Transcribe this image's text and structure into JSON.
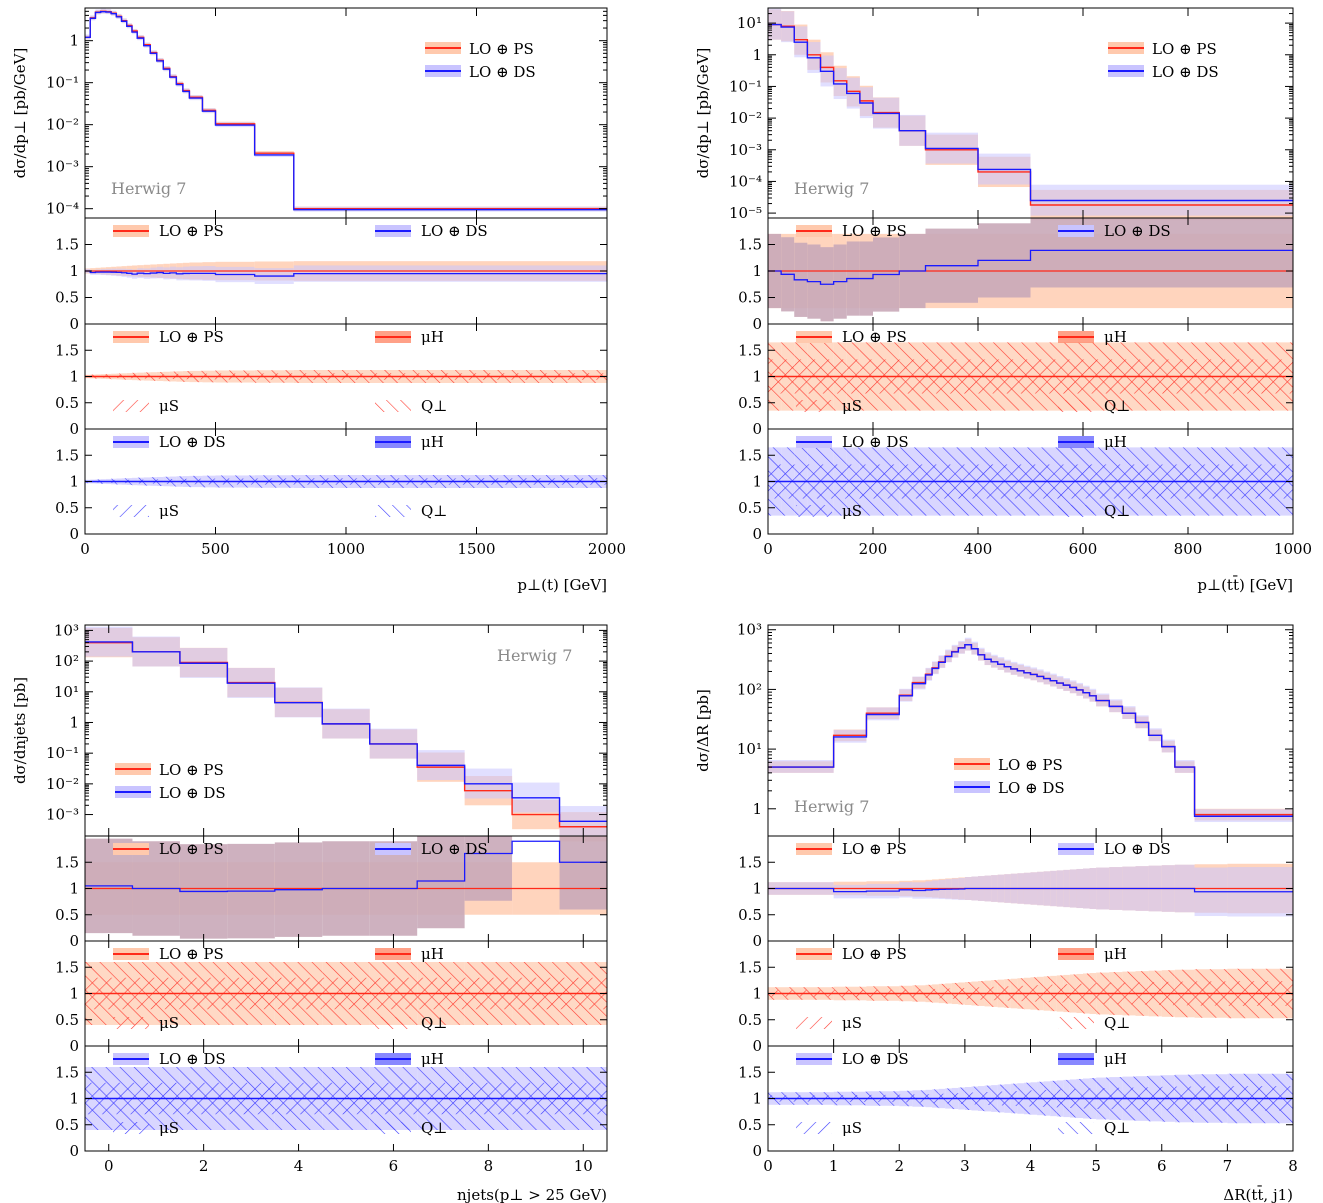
{
  "chart_data": [
    {
      "type": "line",
      "id": "pt_t",
      "xlabel": "p⊥(t) [GeV]",
      "ylabel": "dσ/dp⊥ [pb/GeV]",
      "xlim": [
        0,
        2000
      ],
      "ylim": [
        6e-05,
        6
      ],
      "log_y": true,
      "herwig_label": "Herwig 7",
      "herwig_pos": "left",
      "legend": [
        "LO ⊕ PS",
        "LO ⊕ DS"
      ],
      "x_ticks": [
        "0",
        "500",
        "1000",
        "1500",
        "2000"
      ],
      "x_tick_values": [
        0,
        500,
        1000,
        1500,
        2000
      ],
      "y_ticks": [
        "10⁻⁴",
        "10⁻³",
        "10⁻²",
        "10⁻¹",
        "1"
      ],
      "y_tick_values": [
        0.0001,
        0.001,
        0.01,
        0.1,
        1
      ],
      "edges": [
        0,
        20,
        40,
        60,
        80,
        100,
        120,
        140,
        160,
        180,
        200,
        225,
        250,
        275,
        300,
        325,
        350,
        375,
        400,
        450,
        500,
        650,
        800,
        2000
      ],
      "ps": [
        1.2,
        3.5,
        4.8,
        5.0,
        4.9,
        4.5,
        3.8,
        3.0,
        2.3,
        1.7,
        1.2,
        0.8,
        0.52,
        0.34,
        0.22,
        0.14,
        0.095,
        0.065,
        0.045,
        0.022,
        0.0105,
        0.0021,
        0.0001
      ],
      "ds": [
        1.2,
        3.4,
        4.7,
        4.9,
        4.8,
        4.4,
        3.7,
        2.9,
        2.2,
        1.6,
        1.15,
        0.76,
        0.5,
        0.33,
        0.21,
        0.135,
        0.09,
        0.062,
        0.043,
        0.021,
        0.0098,
        0.0019,
        9.5e-05
      ],
      "ratio1": {
        "legend": [
          "LO ⊕ PS",
          "LO ⊕ DS"
        ],
        "ps_band": 0.12,
        "ds_band": 0.1
      },
      "ratio2": {
        "legend": [
          "LO ⊕ PS",
          "μH",
          "μS",
          "Q⊥"
        ],
        "band": 0.08
      },
      "ratio3": {
        "legend": [
          "LO ⊕ DS",
          "μH",
          "μS",
          "Q⊥"
        ],
        "band": 0.08
      },
      "ratio_ticks": [
        "0",
        "0.5",
        "1",
        "1.5"
      ]
    },
    {
      "type": "line",
      "id": "pt_tt",
      "xlabel": "p⊥(tt̄) [GeV]",
      "ylabel": "dσ/dp⊥ [pb/GeV]",
      "xlim": [
        0,
        1000
      ],
      "ylim": [
        7e-06,
        30
      ],
      "log_y": true,
      "herwig_label": "Herwig 7",
      "herwig_pos": "left",
      "legend": [
        "LO ⊕ PS",
        "LO ⊕ DS"
      ],
      "x_ticks": [
        "0",
        "200",
        "400",
        "600",
        "800",
        "1000"
      ],
      "x_tick_values": [
        0,
        200,
        400,
        600,
        800,
        1000
      ],
      "y_ticks": [
        "10⁻⁵",
        "10⁻⁴",
        "10⁻³",
        "10⁻²",
        "10⁻¹",
        "1",
        "10¹"
      ],
      "y_tick_values": [
        1e-05,
        0.0001,
        0.001,
        0.01,
        0.1,
        1,
        10
      ],
      "edges": [
        0,
        25,
        50,
        75,
        100,
        125,
        150,
        175,
        200,
        250,
        300,
        400,
        500,
        1000
      ],
      "ps": [
        9,
        8,
        3,
        1,
        0.4,
        0.15,
        0.07,
        0.035,
        0.015,
        0.004,
        0.001,
        0.0002,
        1.8e-05
      ],
      "ds": [
        9,
        7.5,
        2.5,
        0.8,
        0.3,
        0.12,
        0.06,
        0.03,
        0.014,
        0.004,
        0.0011,
        0.00024,
        2.5e-05
      ],
      "ratio1": {
        "legend": [
          "LO ⊕ PS",
          "LO ⊕ DS"
        ],
        "ps_band": 0.7,
        "ds_band": 0.7
      },
      "ratio2": {
        "legend": [
          "LO ⊕ PS",
          "μH",
          "μS",
          "Q⊥"
        ],
        "band": 0.65
      },
      "ratio3": {
        "legend": [
          "LO ⊕ DS",
          "μH",
          "μS",
          "Q⊥"
        ],
        "band": 0.65
      },
      "ratio_ticks": [
        "0",
        "0.5",
        "1",
        "1.5"
      ],
      "x_tick_values2": [
        0,
        200,
        400,
        600,
        800,
        1000
      ]
    },
    {
      "type": "line",
      "id": "njets",
      "xlabel": "njets(p⊥ > 25 GeV)",
      "ylabel": "dσ/dnjets [pb]",
      "xlim": [
        -0.5,
        10.5
      ],
      "ylim": [
        0.0002,
        1500
      ],
      "log_y": true,
      "herwig_label": "Herwig 7",
      "herwig_pos": "right",
      "legend": [
        "LO ⊕ PS",
        "LO ⊕ DS"
      ],
      "x_ticks": [
        "0",
        "2",
        "4",
        "6",
        "8",
        "10"
      ],
      "x_tick_values": [
        0,
        2,
        4,
        6,
        8,
        10
      ],
      "y_ticks": [
        "10⁻³",
        "10⁻²",
        "10⁻¹",
        "1",
        "10¹",
        "10²",
        "10³"
      ],
      "y_tick_values": [
        0.001,
        0.01,
        0.1,
        1,
        10,
        100,
        1000
      ],
      "edges": [
        -0.5,
        0.5,
        1.5,
        2.5,
        3.5,
        4.5,
        5.5,
        6.5,
        7.5,
        8.5,
        9.5,
        10.5
      ],
      "ps": [
        400,
        200,
        90,
        20,
        4.5,
        0.9,
        0.2,
        0.035,
        0.006,
        0.001,
        0.0004
      ],
      "ds": [
        420,
        200,
        85,
        19,
        4.4,
        0.9,
        0.2,
        0.04,
        0.01,
        0.0035,
        0.0006
      ],
      "ratio1": {
        "legend": [
          "LO ⊕ PS",
          "LO ⊕ DS"
        ],
        "ps_band": 0.5,
        "ds_band": 0.9
      },
      "ratio2": {
        "legend": [
          "LO ⊕ PS",
          "μH",
          "μS",
          "Q⊥"
        ],
        "band": 0.6
      },
      "ratio3": {
        "legend": [
          "LO ⊕ DS",
          "μH",
          "μS",
          "Q⊥"
        ],
        "band": 0.6
      },
      "ratio_ticks": [
        "0",
        "0.5",
        "1",
        "1.5"
      ]
    },
    {
      "type": "line",
      "id": "dR",
      "xlabel": "ΔR(tt̄, j1)",
      "ylabel": "dσ/ΔR [pb]",
      "xlim": [
        0,
        8
      ],
      "ylim": [
        0.35,
        1200
      ],
      "log_y": true,
      "herwig_label": "Herwig 7",
      "herwig_pos": "left",
      "legend": [
        "LO ⊕ PS",
        "LO ⊕ DS"
      ],
      "x_ticks": [
        "0",
        "1",
        "2",
        "3",
        "4",
        "5",
        "6",
        "7",
        "8"
      ],
      "x_tick_values": [
        0,
        1,
        2,
        3,
        4,
        5,
        6,
        7,
        8
      ],
      "y_ticks": [
        "1",
        "10¹",
        "10²",
        "10³"
      ],
      "y_tick_values": [
        1,
        10,
        100,
        1000
      ],
      "edges": [
        0,
        1,
        1.5,
        2,
        2.2,
        2.4,
        2.5,
        2.6,
        2.7,
        2.8,
        2.9,
        3.0,
        3.1,
        3.2,
        3.3,
        3.4,
        3.5,
        3.6,
        3.7,
        3.8,
        3.9,
        4.0,
        4.1,
        4.2,
        4.3,
        4.4,
        4.5,
        4.6,
        4.7,
        4.8,
        4.9,
        5.0,
        5.2,
        5.4,
        5.6,
        5.8,
        6.0,
        6.2,
        6.5,
        7.0,
        8.0
      ],
      "ps": [
        5,
        17,
        40,
        80,
        130,
        180,
        230,
        290,
        360,
        430,
        500,
        560,
        480,
        380,
        320,
        290,
        265,
        240,
        220,
        205,
        190,
        178,
        165,
        152,
        140,
        128,
        118,
        108,
        98,
        88,
        78,
        65,
        52,
        40,
        28,
        17,
        11,
        5,
        0.8,
        0.8
      ],
      "ds": [
        5,
        16,
        38,
        78,
        125,
        175,
        225,
        285,
        355,
        425,
        495,
        560,
        480,
        380,
        320,
        290,
        265,
        240,
        220,
        205,
        190,
        178,
        165,
        152,
        140,
        128,
        118,
        108,
        98,
        88,
        78,
        65,
        52,
        40,
        28,
        17,
        11,
        5,
        0.75,
        0.75
      ],
      "ratio1": {
        "legend": [
          "LO ⊕ PS",
          "LO ⊕ DS"
        ],
        "ps_band": 0.3,
        "ds_band": 0.3
      },
      "ratio2": {
        "legend": [
          "LO ⊕ PS",
          "μH",
          "μS",
          "Q⊥"
        ],
        "band": 0.3
      },
      "ratio3": {
        "legend": [
          "LO ⊕ DS",
          "μH",
          "μS",
          "Q⊥"
        ],
        "band": 0.3
      },
      "ratio_ticks": [
        "0",
        "0.5",
        "1",
        "1.5"
      ]
    }
  ]
}
